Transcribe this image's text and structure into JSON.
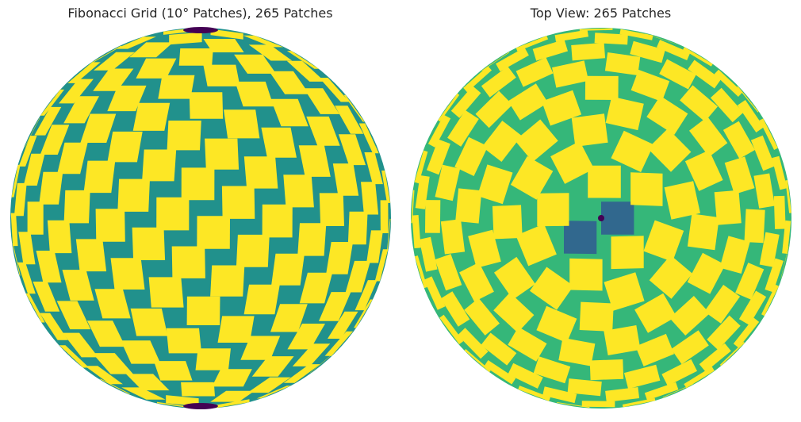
{
  "figure": {
    "left_panel": {
      "title": "Fibonacci Grid (10° Patches), 265 Patches",
      "view": "side"
    },
    "right_panel": {
      "title": "Top View: 265 Patches",
      "view": "top"
    },
    "patch_count": 265,
    "patch_size_deg": 10
  },
  "colors": {
    "patch": "#fde725",
    "side_background": "#21918c",
    "top_background": "#35b779",
    "polar_patch": "#31688e",
    "pole": "#440154"
  }
}
